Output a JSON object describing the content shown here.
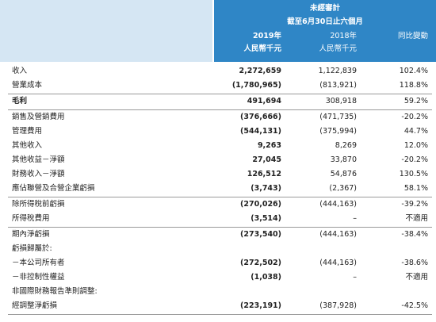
{
  "header": {
    "title": "未經審計",
    "period": "截至6月30日止六個月",
    "columns": [
      {
        "year": "2019年",
        "unit": "人民幣千元"
      },
      {
        "year": "2018年",
        "unit": "人民幣千元"
      }
    ],
    "change": "同比變動"
  },
  "sections": [
    [
      [
        "收入",
        "2,272,659",
        "1,122,839",
        "102.4%"
      ],
      [
        "營業成本",
        "(1,780,965)",
        "(813,921)",
        "118.8%"
      ]
    ],
    [
      [
        "毛利",
        "491,694",
        "308,918",
        "59.2%"
      ]
    ],
    [
      [
        "銷售及營銷費用",
        "(376,666)",
        "(471,735)",
        "-20.2%"
      ],
      [
        "管理費用",
        "(544,131)",
        "(375,994)",
        "44.7%"
      ],
      [
        "其他收入",
        "9,263",
        "8,269",
        "12.0%"
      ],
      [
        "其他收益－淨額",
        "27,045",
        "33,870",
        "-20.2%"
      ],
      [
        "財務收入－淨額",
        "126,512",
        "54,876",
        "130.5%"
      ],
      [
        "應佔聯營及合營企業虧損",
        "(3,743)",
        "(2,367)",
        "58.1%"
      ]
    ],
    [
      [
        "除所得稅前虧損",
        "(270,026)",
        "(444,163)",
        "-39.2%"
      ],
      [
        "所得稅費用",
        "(3,514)",
        "–",
        "不適用"
      ]
    ],
    [
      [
        "期內淨虧損",
        "(273,540)",
        "(444,163)",
        "-38.4%"
      ],
      [
        "虧損歸屬於:"
      ],
      [
        "－本公司所有者",
        "(272,502)",
        "(444,163)",
        "-38.6%"
      ],
      [
        "－非控制性權益",
        "(1,038)",
        "–",
        "不適用"
      ],
      [
        "非國際財務報告準則調整:"
      ],
      [
        "經調整淨虧損",
        "(223,191)",
        "(387,928)",
        "-42.5%"
      ]
    ]
  ]
}
